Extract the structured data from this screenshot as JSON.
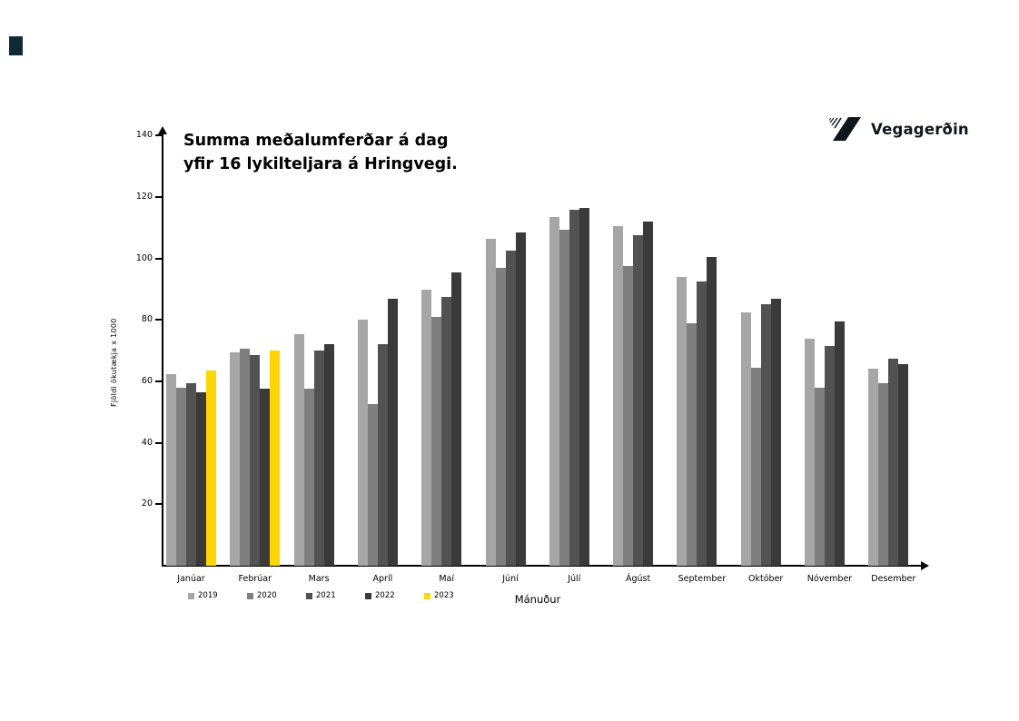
{
  "slide": {
    "accent_square_color": "#0e2a33",
    "background_color": "#ffffff"
  },
  "logo": {
    "text": "Vegagerðin",
    "icon": "vegagerdin-road-slash-icon",
    "color": "#10151c"
  },
  "chart_data": {
    "type": "bar",
    "title": "Summa meðalumferðar á dag yfir 16 lykilteljara á Hringvegi.",
    "title_lines": [
      "Summa meðalumferðar á dag",
      "yfir 16 lykilteljara á Hringvegi."
    ],
    "xlabel": "Mánuður",
    "ylabel": "Fjöldi ökutækja x 1000",
    "ylim": [
      0,
      140
    ],
    "yticks": [
      20,
      40,
      60,
      80,
      100,
      120,
      140
    ],
    "grid": false,
    "legend_position": "bottom-left",
    "categories": [
      "Janúar",
      "Febrúar",
      "Mars",
      "Apríl",
      "Maí",
      "Júní",
      "Júlí",
      "Ágúst",
      "September",
      "Október",
      "Nóvember",
      "Desember"
    ],
    "series": [
      {
        "name": "2019",
        "color": "#a6a6a6",
        "values": [
          62.5,
          69.5,
          75.5,
          80,
          90,
          106.5,
          113.5,
          110.5,
          94,
          82.5,
          74,
          64
        ]
      },
      {
        "name": "2020",
        "color": "#7f7f7f",
        "values": [
          58,
          70.5,
          57.5,
          52.5,
          81,
          97,
          109.5,
          97.5,
          79,
          64.5,
          58,
          59.5
        ]
      },
      {
        "name": "2021",
        "color": "#525252",
        "values": [
          59.5,
          68.5,
          70,
          72,
          87.5,
          102.5,
          116,
          107.5,
          92.5,
          85,
          71.5,
          67.5
        ]
      },
      {
        "name": "2022",
        "color": "#3a3a3a",
        "values": [
          56.5,
          57.5,
          72,
          87,
          95.5,
          108.5,
          116.5,
          112,
          100.5,
          87,
          79.5,
          65.5
        ]
      },
      {
        "name": "2023",
        "color": "#ffd700",
        "values": [
          63.5,
          70,
          null,
          null,
          null,
          null,
          null,
          null,
          null,
          null,
          null,
          null
        ]
      }
    ]
  }
}
